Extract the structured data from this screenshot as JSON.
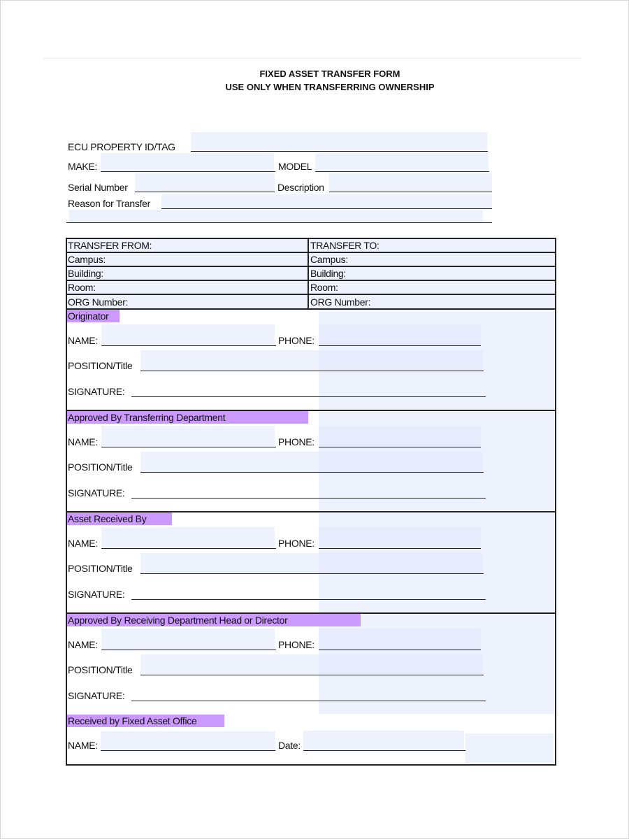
{
  "header": {
    "title": "FIXED ASSET TRANSFER FORM",
    "subtitle": "USE ONLY WHEN TRANSFERRING OWNERSHIP"
  },
  "asset_fields": {
    "property_id": "ECU PROPERTY ID/TAG",
    "make": "MAKE:",
    "model": "MODEL",
    "serial": "Serial Number",
    "description": "Description",
    "reason": "Reason for Transfer"
  },
  "transfer_table": {
    "from": [
      "TRANSFER FROM:",
      "Campus:",
      "Building:",
      "Room:",
      "ORG Number:"
    ],
    "to": [
      "TRANSFER TO:",
      "Campus:",
      "Building:",
      "Room:",
      "ORG Number:"
    ]
  },
  "sections": [
    {
      "title": "Originator",
      "name": "NAME:",
      "phone": "PHONE:",
      "position": "POSITION/Title",
      "signature": "SIGNATURE:"
    },
    {
      "title": "Approved By Transferring Department",
      "name": "NAME:",
      "phone": "PHONE:",
      "position": "POSITION/Title",
      "signature": "SIGNATURE:"
    },
    {
      "title": "Asset Received By",
      "name": "NAME:",
      "phone": "PHONE:",
      "position": "POSITION/Title",
      "signature": "SIGNATURE:"
    },
    {
      "title": "Approved By Receiving Department Head or Director",
      "name": "NAME:",
      "phone": "PHONE:",
      "position": "POSITION/Title",
      "signature": "SIGNATURE:"
    }
  ],
  "final_section": {
    "title": "Received by Fixed Asset Office",
    "name": "NAME:",
    "date": "Date:"
  },
  "colors": {
    "highlight": "#cc99ff",
    "field_fill": "#eef2fd",
    "border": "#222222"
  }
}
